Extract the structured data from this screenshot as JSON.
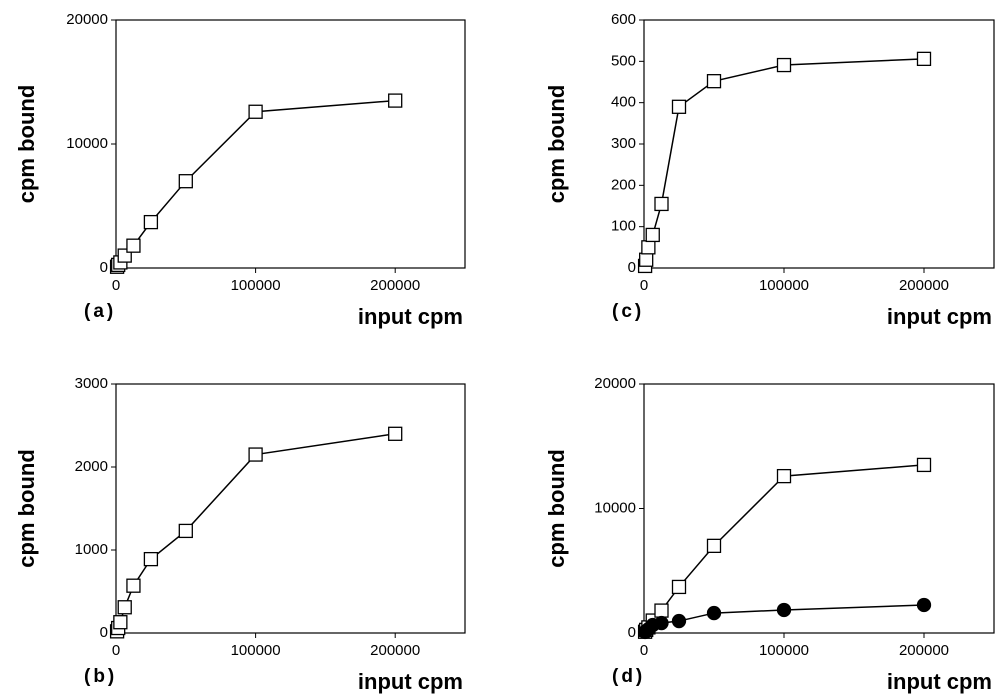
{
  "chart_data": [
    {
      "type": "line",
      "panel_label": "(a)",
      "y_label": "cpm bound",
      "x_label": "input cpm",
      "xlim": [
        0,
        250000
      ],
      "xticks": [
        0,
        100000,
        200000
      ],
      "ylim": [
        0,
        20000
      ],
      "yticks": [
        0,
        10000,
        20000
      ],
      "x": [
        781,
        1562,
        3125,
        6250,
        12500,
        25000,
        50000,
        100000,
        200000
      ],
      "series": [
        {
          "color": "#000000",
          "marker": "square",
          "values": [
            100,
            250,
            450,
            1000,
            1800,
            3700,
            7000,
            12600,
            13500
          ]
        }
      ]
    },
    {
      "type": "line",
      "panel_label": "(b)",
      "y_label": "cpm bound",
      "x_label": "input cpm",
      "xlim": [
        0,
        250000
      ],
      "xticks": [
        0,
        100000,
        200000
      ],
      "ylim": [
        0,
        3000
      ],
      "yticks": [
        0,
        1000,
        2000,
        3000
      ],
      "x": [
        781,
        1562,
        3125,
        6250,
        12500,
        25000,
        50000,
        100000,
        200000
      ],
      "series": [
        {
          "color": "#000000",
          "marker": "square",
          "values": [
            20,
            60,
            130,
            310,
            570,
            890,
            1230,
            2150,
            2400
          ]
        }
      ]
    },
    {
      "type": "line",
      "panel_label": "(c)",
      "y_label": "cpm bound",
      "x_label": "input cpm",
      "xlim": [
        0,
        250000
      ],
      "xticks": [
        0,
        100000,
        200000
      ],
      "ylim": [
        0,
        600
      ],
      "yticks": [
        0,
        100,
        200,
        300,
        400,
        500,
        600
      ],
      "x": [
        781,
        1562,
        3125,
        6250,
        12500,
        25000,
        50000,
        100000,
        200000
      ],
      "series": [
        {
          "color": "#000000",
          "marker": "square",
          "values": [
            5,
            20,
            50,
            80,
            155,
            390,
            452,
            491,
            506
          ]
        }
      ]
    },
    {
      "type": "line",
      "panel_label": "(d)",
      "y_label": "cpm bound",
      "x_label": "input cpm",
      "xlim": [
        0,
        250000
      ],
      "xticks": [
        0,
        100000,
        200000
      ],
      "ylim": [
        0,
        20000
      ],
      "yticks": [
        0,
        10000,
        20000
      ],
      "x": [
        781,
        1562,
        3125,
        6250,
        12500,
        25000,
        50000,
        100000,
        200000
      ],
      "series": [
        {
          "color": "#000000",
          "marker": "square",
          "values": [
            100,
            250,
            450,
            1000,
            1800,
            3700,
            7000,
            12600,
            13500
          ]
        },
        {
          "color": "#000000",
          "marker": "circle",
          "values": [
            80,
            160,
            300,
            640,
            800,
            960,
            1600,
            1850,
            2250
          ]
        }
      ]
    }
  ]
}
